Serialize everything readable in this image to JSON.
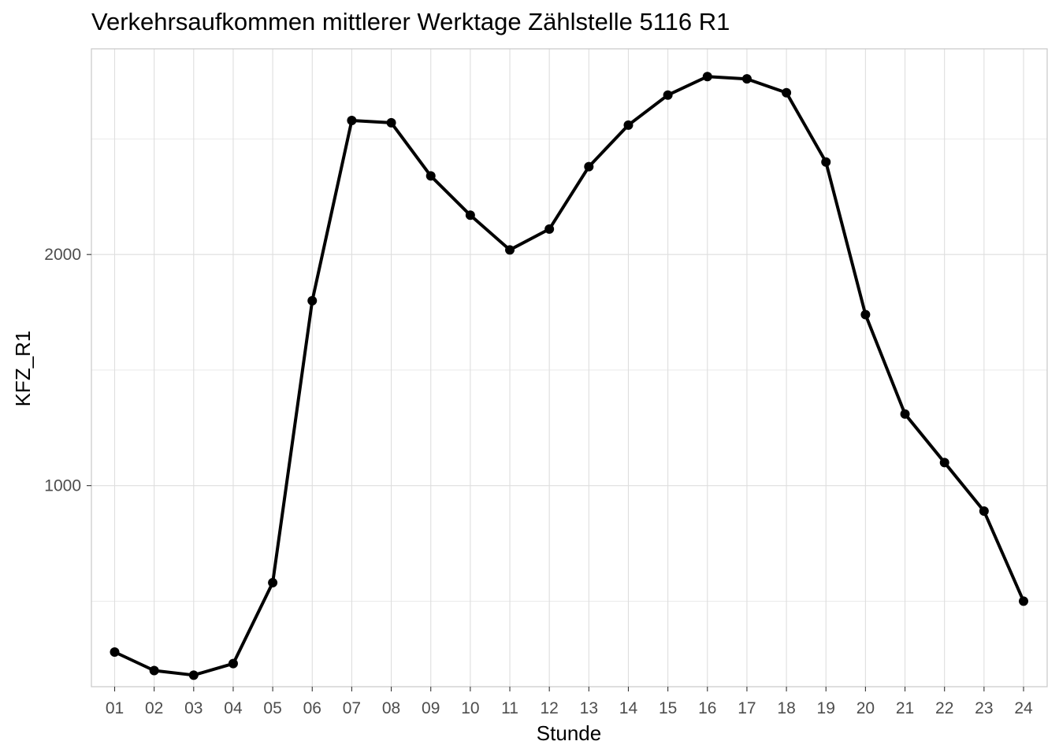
{
  "chart_data": {
    "type": "line",
    "title": "Verkehrsaufkommen mittlerer Werktage Zählstelle 5116 R1",
    "xlabel": "Stunde",
    "ylabel": "KFZ_R1",
    "categories": [
      "01",
      "02",
      "03",
      "04",
      "05",
      "06",
      "07",
      "08",
      "09",
      "10",
      "11",
      "12",
      "13",
      "14",
      "15",
      "16",
      "17",
      "18",
      "19",
      "20",
      "21",
      "22",
      "23",
      "24"
    ],
    "series": [
      {
        "values": [
          280,
          200,
          180,
          230,
          580,
          1800,
          2580,
          2570,
          2340,
          2170,
          2020,
          2110,
          2380,
          2560,
          2690,
          2770,
          2760,
          2700,
          2400,
          1740,
          1310,
          1100,
          890,
          500
        ]
      }
    ],
    "y_ticks": [
      1000,
      2000
    ],
    "ylim": [
      130,
      2890
    ],
    "grid": true,
    "legend": "none",
    "colors": {
      "line": "#000000",
      "grid": "#dedede",
      "panel_border": "#c8c8c8"
    }
  }
}
